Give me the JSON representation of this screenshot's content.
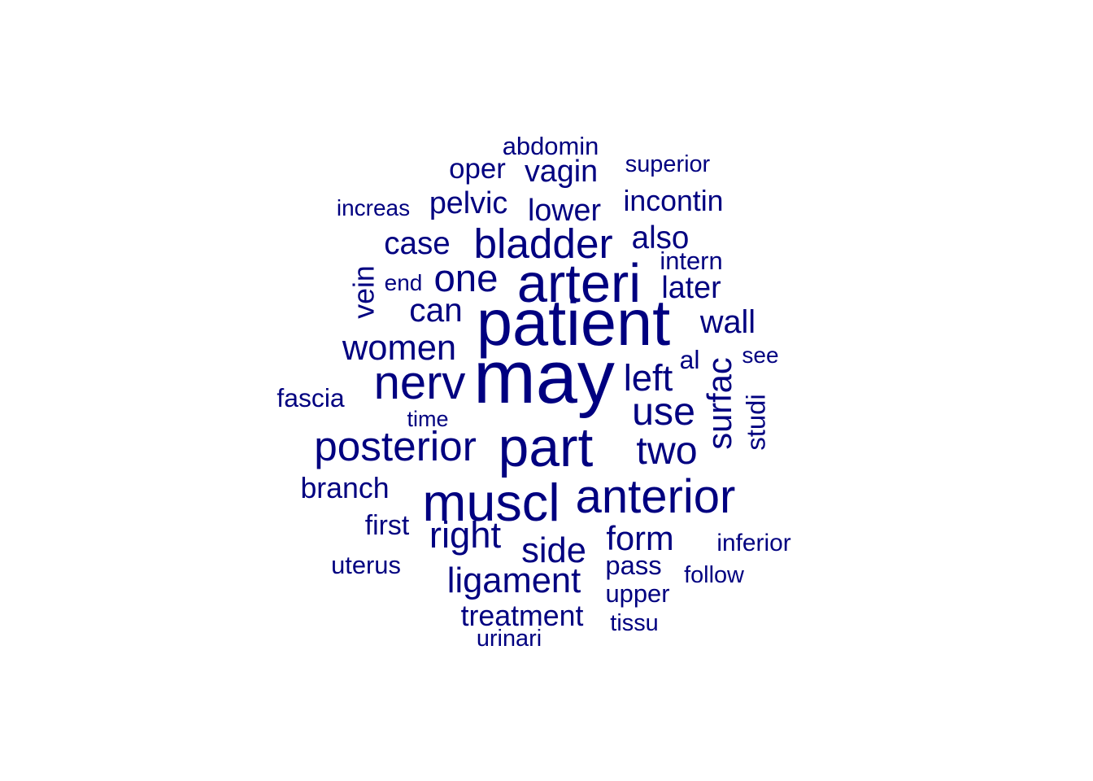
{
  "chart_data": {
    "type": "wordcloud",
    "color": "#000080",
    "background": "#ffffff",
    "words": [
      {
        "text": "may",
        "weight": 100
      },
      {
        "text": "patient",
        "weight": 87
      },
      {
        "text": "part",
        "weight": 75
      },
      {
        "text": "arteri",
        "weight": 74
      },
      {
        "text": "muscl",
        "weight": 72
      },
      {
        "text": "nerv",
        "weight": 65
      },
      {
        "text": "anterior",
        "weight": 65
      },
      {
        "text": "bladder",
        "weight": 58
      },
      {
        "text": "posterior",
        "weight": 58
      },
      {
        "text": "use",
        "weight": 55
      },
      {
        "text": "two",
        "weight": 55
      },
      {
        "text": "one",
        "weight": 54
      },
      {
        "text": "left",
        "weight": 52
      },
      {
        "text": "right",
        "weight": 52
      },
      {
        "text": "ligament",
        "weight": 50
      },
      {
        "text": "side",
        "weight": 50
      },
      {
        "text": "women",
        "weight": 50
      },
      {
        "text": "surfac",
        "weight": 48
      },
      {
        "text": "form",
        "weight": 48
      },
      {
        "text": "can",
        "weight": 47
      },
      {
        "text": "wall",
        "weight": 46
      },
      {
        "text": "case",
        "weight": 45
      },
      {
        "text": "also",
        "weight": 45
      },
      {
        "text": "pelvic",
        "weight": 44
      },
      {
        "text": "vagin",
        "weight": 44
      },
      {
        "text": "lower",
        "weight": 44
      },
      {
        "text": "later",
        "weight": 44
      },
      {
        "text": "incontin",
        "weight": 42
      },
      {
        "text": "branch",
        "weight": 42
      },
      {
        "text": "vein",
        "weight": 42
      },
      {
        "text": "treatment",
        "weight": 42
      },
      {
        "text": "oper",
        "weight": 41
      },
      {
        "text": "first",
        "weight": 40
      },
      {
        "text": "pass",
        "weight": 39
      },
      {
        "text": "studi",
        "weight": 39
      },
      {
        "text": "fascia",
        "weight": 38
      },
      {
        "text": "al",
        "weight": 38
      },
      {
        "text": "uterus",
        "weight": 37
      },
      {
        "text": "abdomin",
        "weight": 37
      },
      {
        "text": "upper",
        "weight": 37
      },
      {
        "text": "intern",
        "weight": 37
      },
      {
        "text": "inferior",
        "weight": 36
      },
      {
        "text": "urinari",
        "weight": 35
      },
      {
        "text": "follow",
        "weight": 35
      },
      {
        "text": "superior",
        "weight": 35
      },
      {
        "text": "tissu",
        "weight": 35
      },
      {
        "text": "increas",
        "weight": 34
      },
      {
        "text": "see",
        "weight": 34
      },
      {
        "text": "end",
        "weight": 34
      },
      {
        "text": "time",
        "weight": 33
      }
    ]
  }
}
